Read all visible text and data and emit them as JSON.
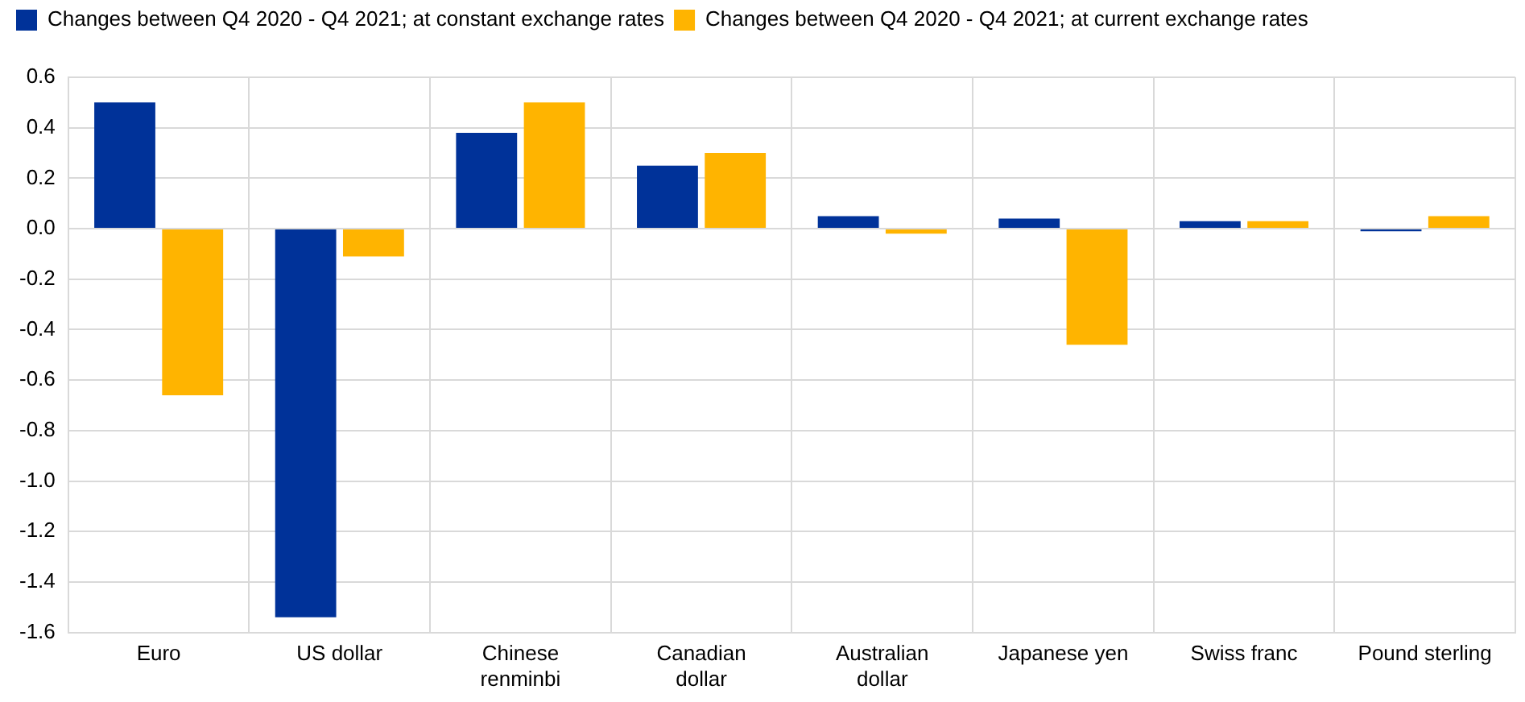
{
  "chart_data": {
    "type": "bar",
    "categories": [
      "Euro",
      "US dollar",
      "Chinese renminbi",
      "Canadian dollar",
      "Australian dollar",
      "Japanese yen",
      "Swiss franc",
      "Pound sterling"
    ],
    "series": [
      {
        "name": "Changes between Q4 2020 - Q4 2021; at constant exchange rates",
        "color": "#003299",
        "values": [
          0.5,
          -1.54,
          0.38,
          0.25,
          0.05,
          0.04,
          0.03,
          -0.01
        ]
      },
      {
        "name": "Changes between Q4 2020 - Q4 2021; at current exchange rates",
        "color": "#ffb400",
        "values": [
          -0.66,
          -0.11,
          0.5,
          0.3,
          -0.02,
          -0.46,
          0.03,
          0.05
        ]
      }
    ],
    "ylim": [
      -1.6,
      0.6
    ],
    "yticks": [
      {
        "value": -1.6,
        "label": "-1.6"
      },
      {
        "value": -1.4,
        "label": "-1.4"
      },
      {
        "value": -1.2,
        "label": "-1.2"
      },
      {
        "value": -1,
        "label": "-1.0"
      },
      {
        "value": -0.8,
        "label": "-0.8"
      },
      {
        "value": -0.6,
        "label": "-0.6"
      },
      {
        "value": -0.4,
        "label": "-0.4"
      },
      {
        "value": -0.2,
        "label": "-0.2"
      },
      {
        "value": 0,
        "label": "0.0"
      },
      {
        "value": 0.2,
        "label": "0.2"
      },
      {
        "value": 0.4,
        "label": "0.4"
      },
      {
        "value": 0.6,
        "label": "0.6"
      }
    ],
    "grid": true,
    "legend": "top left"
  }
}
